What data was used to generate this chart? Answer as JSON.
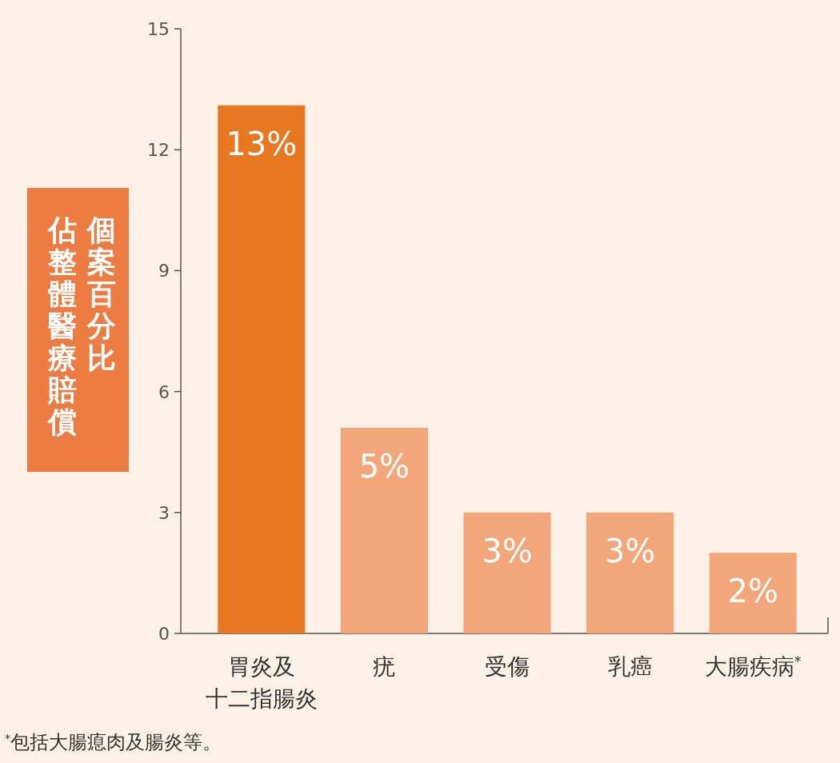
{
  "chart_data": {
    "type": "bar",
    "ylabel": "佔整體醫療賠償個案百分比",
    "categories": [
      "胃炎及十二指腸炎",
      "疣",
      "受傷",
      "乳癌",
      "大腸疾病$^{*}$"
    ],
    "values": [
      13.1,
      5.1,
      3,
      3,
      2
    ],
    "colors": [
      "#e87722",
      "#f2a679",
      "#f2a679",
      "#f2a679",
      "#f2a679"
    ],
    "value_labels": [
      "13%",
      "5%",
      "3%",
      "3%",
      "2%"
    ],
    "ylim": [
      0,
      15
    ],
    "yticks": [
      0,
      3,
      6,
      9,
      12,
      15
    ],
    "annotations": [
      "$^{*}$包括大腸瘜肉及腸炎等。"
    ]
  }
}
